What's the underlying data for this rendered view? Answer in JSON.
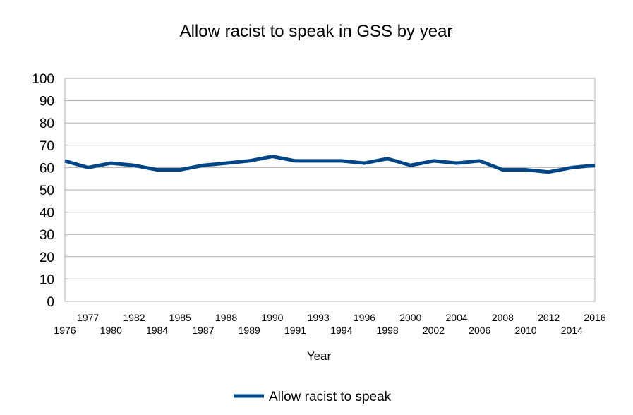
{
  "chart_data": {
    "type": "line",
    "title": "Allow racist to speak in GSS by year",
    "xlabel": "Year",
    "ylabel": "",
    "ylim": [
      0,
      100
    ],
    "yticks": [
      0,
      10,
      20,
      30,
      40,
      50,
      60,
      70,
      80,
      90,
      100
    ],
    "grid": true,
    "legend_position": "bottom",
    "categories": [
      "1976",
      "1977",
      "1980",
      "1982",
      "1984",
      "1985",
      "1987",
      "1988",
      "1989",
      "1990",
      "1991",
      "1993",
      "1994",
      "1996",
      "1998",
      "2000",
      "2002",
      "2004",
      "2006",
      "2008",
      "2010",
      "2012",
      "2014",
      "2016"
    ],
    "series": [
      {
        "name": "Allow racist to speak",
        "color": "#004586",
        "values": [
          63,
          60,
          62,
          61,
          59,
          59,
          61,
          62,
          63,
          65,
          63,
          63,
          63,
          62,
          64,
          61,
          63,
          62,
          63,
          59,
          59,
          58,
          60,
          61
        ]
      }
    ]
  }
}
